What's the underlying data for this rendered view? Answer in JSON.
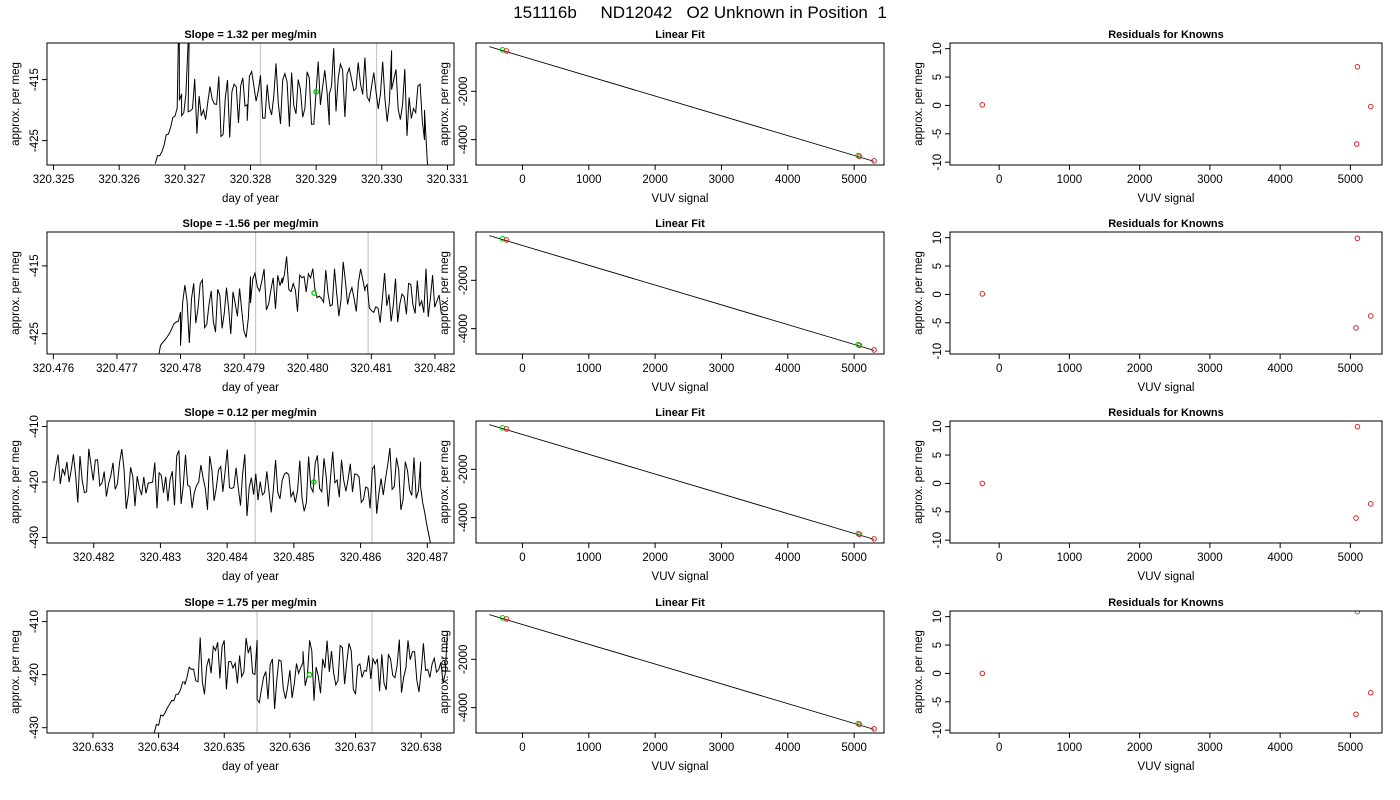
{
  "figure_title": "151116b     ND12042   O2 Unknown in Position  1",
  "chart_data": [
    {
      "type": "line",
      "row": 0,
      "col": 0,
      "title": "Slope =  1.32  per meg/min",
      "xlabel": "day of year",
      "ylabel": "approx. per meg",
      "xlim": [
        320.3249,
        320.3311
      ],
      "ylim": [
        -429,
        -409
      ],
      "xticks": [
        "320.325",
        "320.326",
        "320.327",
        "320.328",
        "320.329",
        "320.330",
        "320.331"
      ],
      "yticks": [
        -425,
        -415
      ],
      "vlines": [
        320.32815,
        320.32992
      ],
      "highlight_point": {
        "x": 320.329,
        "y": -417
      },
      "series_seed": 11,
      "noise_scale": 6,
      "level": -417,
      "segments": [
        {
          "x0": 320.32655,
          "x1": 320.32695,
          "y0": -429,
          "y1": -418
        },
        {
          "x0": 320.32695,
          "x1": 320.32795,
          "y0": -419,
          "y1": -419
        },
        {
          "x0": 320.32795,
          "x1": 320.3292,
          "y0": -418,
          "y1": -417
        },
        {
          "x0": 320.3292,
          "x1": 320.33015,
          "y0": -416,
          "y1": -416
        },
        {
          "x0": 320.33015,
          "x1": 320.33065,
          "y0": -418,
          "y1": -420
        },
        {
          "x0": 320.33065,
          "x1": 320.3307,
          "y0": -420,
          "y1": -429
        }
      ],
      "spikes": [
        {
          "x": 320.3269,
          "y": -409
        },
        {
          "x": 320.32705,
          "y": -409
        }
      ]
    },
    {
      "type": "scatter_fit",
      "row": 0,
      "col": 1,
      "title": "Linear Fit",
      "xlabel": "VUV signal",
      "ylabel": "approx. per meg",
      "xlim": [
        -700,
        5450
      ],
      "ylim": [
        -5050,
        0
      ],
      "xticks": [
        0,
        1000,
        2000,
        3000,
        4000,
        5000
      ],
      "yticks": [
        -2000,
        -4000
      ],
      "fit_line": [
        {
          "x": -500,
          "y": -150
        },
        {
          "x": 5300,
          "y": -4900
        }
      ],
      "red_points": [
        {
          "x": -240,
          "y": -330
        },
        {
          "x": 5080,
          "y": -4690
        },
        {
          "x": 5300,
          "y": -4880
        }
      ],
      "green_points": [
        {
          "x": -300,
          "y": -280
        },
        {
          "x": 5060,
          "y": -4660
        }
      ]
    },
    {
      "type": "scatter",
      "row": 0,
      "col": 2,
      "title": "Residuals for Knowns",
      "xlabel": "VUV signal",
      "ylabel": "approx. per meg",
      "xlim": [
        -700,
        5450
      ],
      "ylim": [
        -10.5,
        11
      ],
      "xticks": [
        0,
        1000,
        2000,
        3000,
        4000,
        5000
      ],
      "yticks": [
        10,
        5,
        0,
        -5,
        -10
      ],
      "red_points": [
        {
          "x": -240,
          "y": 0.1
        },
        {
          "x": 5100,
          "y": 6.8
        },
        {
          "x": 5290,
          "y": -0.2
        },
        {
          "x": 5090,
          "y": -6.8
        }
      ]
    },
    {
      "type": "line",
      "row": 1,
      "col": 0,
      "title": "Slope =  -1.56  per meg/min",
      "xlabel": "day of year",
      "ylabel": "approx. per meg",
      "xlim": [
        320.4759,
        320.4823
      ],
      "ylim": [
        -428,
        -410
      ],
      "xticks": [
        "320.476",
        "320.477",
        "320.478",
        "320.479",
        "320.480",
        "320.481",
        "320.482"
      ],
      "yticks": [
        -425,
        -415
      ],
      "vlines": [
        320.47918,
        320.48095
      ],
      "highlight_point": {
        "x": 320.4801,
        "y": -419
      },
      "series_seed": 23,
      "noise_scale": 5,
      "level": -420,
      "segments": [
        {
          "x0": 320.47765,
          "x1": 320.478,
          "y0": -428,
          "y1": -422
        },
        {
          "x0": 320.478,
          "x1": 320.4791,
          "y0": -422,
          "y1": -421
        },
        {
          "x0": 320.4791,
          "x1": 320.4796,
          "y0": -419,
          "y1": -418
        },
        {
          "x0": 320.4796,
          "x1": 320.4809,
          "y0": -418,
          "y1": -419
        },
        {
          "x0": 320.4809,
          "x1": 320.4821,
          "y0": -420,
          "y1": -420
        }
      ],
      "spikes": []
    },
    {
      "type": "scatter_fit",
      "row": 1,
      "col": 1,
      "title": "Linear Fit",
      "xlabel": "VUV signal",
      "ylabel": "approx. per meg",
      "xlim": [
        -700,
        5450
      ],
      "ylim": [
        -5050,
        0
      ],
      "xticks": [
        0,
        1000,
        2000,
        3000,
        4000,
        5000
      ],
      "yticks": [
        -2000,
        -4000
      ],
      "fit_line": [
        {
          "x": -500,
          "y": -150
        },
        {
          "x": 5300,
          "y": -4900
        }
      ],
      "red_points": [
        {
          "x": -240,
          "y": -330
        },
        {
          "x": 5080,
          "y": -4690
        },
        {
          "x": 5300,
          "y": -4880
        }
      ],
      "green_points": [
        {
          "x": -300,
          "y": -280
        },
        {
          "x": 5060,
          "y": -4660
        }
      ]
    },
    {
      "type": "scatter",
      "row": 1,
      "col": 2,
      "title": "Residuals for Knowns",
      "xlabel": "VUV signal",
      "ylabel": "approx. per meg",
      "xlim": [
        -700,
        5450
      ],
      "ylim": [
        -10.5,
        11
      ],
      "xticks": [
        0,
        1000,
        2000,
        3000,
        4000,
        5000
      ],
      "yticks": [
        10,
        5,
        0,
        -5,
        -10
      ],
      "red_points": [
        {
          "x": -240,
          "y": 0.1
        },
        {
          "x": 5100,
          "y": 9.9
        },
        {
          "x": 5290,
          "y": -3.8
        },
        {
          "x": 5080,
          "y": -5.9
        }
      ]
    },
    {
      "type": "line",
      "row": 2,
      "col": 0,
      "title": "Slope =  0.12  per meg/min",
      "xlabel": "day of year",
      "ylabel": "approx. per meg",
      "xlim": [
        320.4813,
        320.4874
      ],
      "ylim": [
        -431,
        -409
      ],
      "xticks": [
        "320.482",
        "320.483",
        "320.484",
        "320.485",
        "320.486",
        "320.487"
      ],
      "yticks": [
        -410,
        -420,
        -430
      ],
      "vlines": [
        320.48442,
        320.48617
      ],
      "highlight_point": {
        "x": 320.4853,
        "y": -420
      },
      "series_seed": 37,
      "noise_scale": 6,
      "level": -420,
      "segments": [
        {
          "x0": 320.4814,
          "x1": 320.4869,
          "y0": -420,
          "y1": -420
        },
        {
          "x0": 320.4869,
          "x1": 320.48705,
          "y0": -421,
          "y1": -431
        }
      ],
      "spikes": []
    },
    {
      "type": "scatter_fit",
      "row": 2,
      "col": 1,
      "title": "Linear Fit",
      "xlabel": "VUV signal",
      "ylabel": "approx. per meg",
      "xlim": [
        -700,
        5450
      ],
      "ylim": [
        -5050,
        0
      ],
      "xticks": [
        0,
        1000,
        2000,
        3000,
        4000,
        5000
      ],
      "yticks": [
        -2000,
        -4000
      ],
      "fit_line": [
        {
          "x": -500,
          "y": -150
        },
        {
          "x": 5300,
          "y": -4900
        }
      ],
      "red_points": [
        {
          "x": -240,
          "y": -330
        },
        {
          "x": 5080,
          "y": -4690
        },
        {
          "x": 5300,
          "y": -4880
        }
      ],
      "green_points": [
        {
          "x": -300,
          "y": -280
        },
        {
          "x": 5060,
          "y": -4660
        }
      ]
    },
    {
      "type": "scatter",
      "row": 2,
      "col": 2,
      "title": "Residuals for Knowns",
      "xlabel": "VUV signal",
      "ylabel": "approx. per meg",
      "xlim": [
        -700,
        5450
      ],
      "ylim": [
        -10.5,
        11
      ],
      "xticks": [
        0,
        1000,
        2000,
        3000,
        4000,
        5000
      ],
      "yticks": [
        10,
        5,
        0,
        -5,
        -10
      ],
      "red_points": [
        {
          "x": -240,
          "y": 0.0
        },
        {
          "x": 5100,
          "y": 10.0
        },
        {
          "x": 5290,
          "y": -3.6
        },
        {
          "x": 5080,
          "y": -6.1
        }
      ]
    },
    {
      "type": "line",
      "row": 3,
      "col": 0,
      "title": "Slope =  1.75  per meg/min",
      "xlabel": "day of year",
      "ylabel": "approx. per meg",
      "xlim": [
        320.6323,
        320.6385
      ],
      "ylim": [
        -431,
        -408
      ],
      "xticks": [
        "320.633",
        "320.634",
        "320.635",
        "320.636",
        "320.637",
        "320.638"
      ],
      "yticks": [
        -410,
        -420,
        -430
      ],
      "vlines": [
        320.6355,
        320.63725
      ],
      "highlight_point": {
        "x": 320.6363,
        "y": -420
      },
      "series_seed": 53,
      "noise_scale": 6,
      "level": -420,
      "segments": [
        {
          "x0": 320.6339,
          "x1": 320.6344,
          "y0": -431,
          "y1": -421
        },
        {
          "x0": 320.6344,
          "x1": 320.6355,
          "y0": -419,
          "y1": -417
        },
        {
          "x0": 320.6355,
          "x1": 320.6362,
          "y0": -422,
          "y1": -421
        },
        {
          "x0": 320.6362,
          "x1": 320.6384,
          "y0": -419,
          "y1": -418
        }
      ],
      "spikes": []
    },
    {
      "type": "scatter_fit",
      "row": 3,
      "col": 1,
      "title": "Linear Fit",
      "xlabel": "VUV signal",
      "ylabel": "approx. per meg",
      "xlim": [
        -700,
        5450
      ],
      "ylim": [
        -5050,
        0
      ],
      "xticks": [
        0,
        1000,
        2000,
        3000,
        4000,
        5000
      ],
      "yticks": [
        -2000,
        -4000
      ],
      "fit_line": [
        {
          "x": -500,
          "y": -150
        },
        {
          "x": 5300,
          "y": -4900
        }
      ],
      "red_points": [
        {
          "x": -240,
          "y": -330
        },
        {
          "x": 5080,
          "y": -4690
        },
        {
          "x": 5300,
          "y": -4880
        }
      ],
      "green_points": [
        {
          "x": -300,
          "y": -280
        },
        {
          "x": 5060,
          "y": -4660
        }
      ]
    },
    {
      "type": "scatter",
      "row": 3,
      "col": 2,
      "title": "Residuals for Knowns",
      "xlabel": "VUV signal",
      "ylabel": "approx. per meg",
      "xlim": [
        -700,
        5450
      ],
      "ylim": [
        -10.5,
        11
      ],
      "xticks": [
        0,
        1000,
        2000,
        3000,
        4000,
        5000
      ],
      "yticks": [
        10,
        5,
        0,
        -5,
        -10
      ],
      "red_points": [
        {
          "x": -240,
          "y": 0.0
        },
        {
          "x": 5100,
          "y": 10.9
        },
        {
          "x": 5290,
          "y": -3.4
        },
        {
          "x": 5080,
          "y": -7.2
        }
      ]
    }
  ],
  "colors": {
    "line": "#000000",
    "red_point": "#d62728",
    "green_point": "#00cc00",
    "vline": "#c8c8c8",
    "frame": "#000000"
  }
}
